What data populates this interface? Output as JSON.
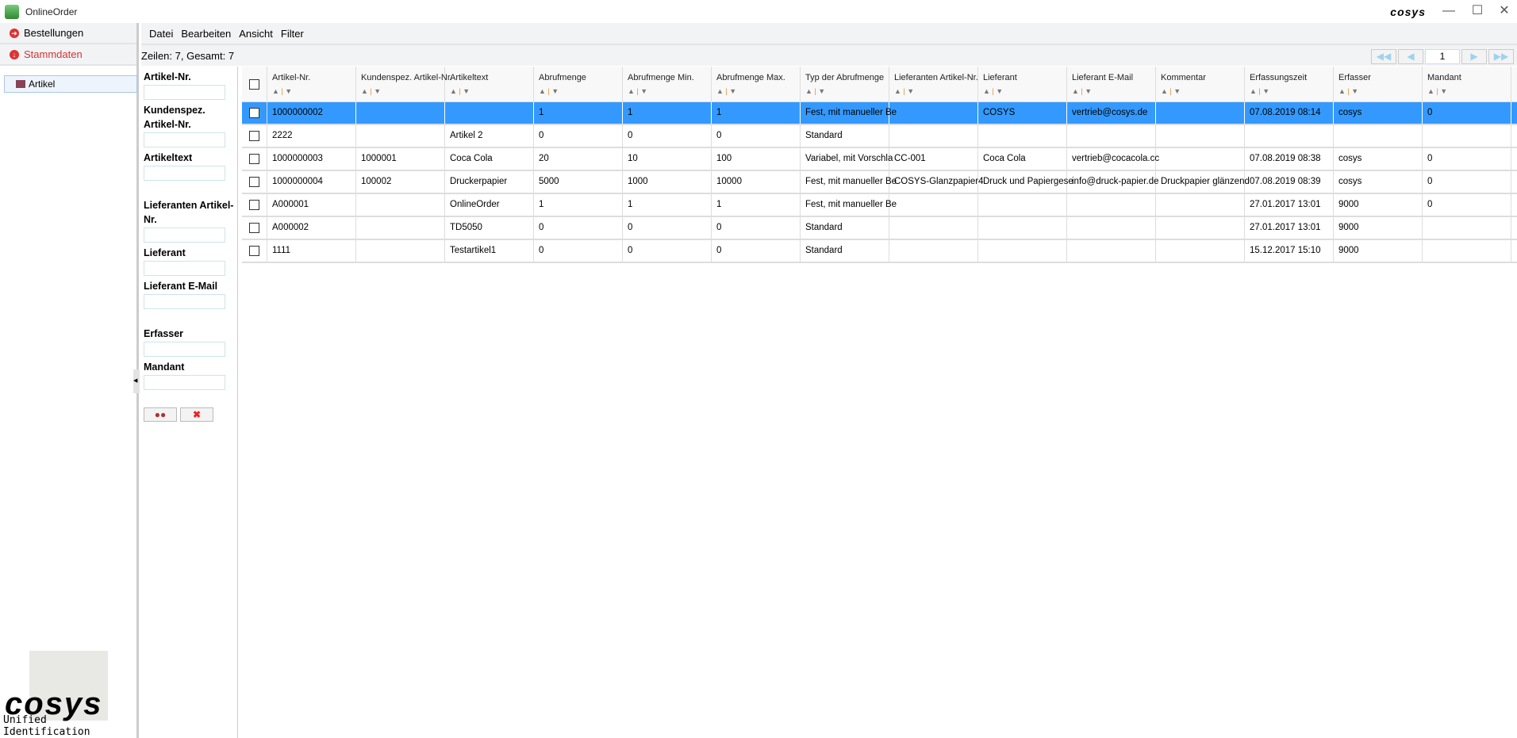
{
  "window": {
    "title": "OnlineOrder",
    "logo": "cosys",
    "controls": [
      "minimize",
      "maximize",
      "close"
    ]
  },
  "sidebar": {
    "items": [
      {
        "label": "Bestellungen",
        "icon": "arrow-right-circle-icon"
      },
      {
        "label": "Stammdaten",
        "icon": "arrow-down-circle-icon",
        "color": "#d33333"
      }
    ],
    "tree": [
      {
        "label": "Artikel"
      }
    ],
    "logo": {
      "word": "COSYS",
      "tagline": "Unified Identification"
    }
  },
  "menu": [
    "Datei",
    "Bearbeiten",
    "Ansicht",
    "Filter"
  ],
  "status": "Zeilen: 7, Gesamt: 7",
  "pager": {
    "page": "1"
  },
  "filter": {
    "fields": [
      "Artikel-Nr.",
      "Kundenspez. Artikel-Nr.",
      "Artikeltext",
      "Lieferanten Artikel-Nr.",
      "Lieferant",
      "Lieferant E-Mail",
      "Erfasser",
      "Mandant"
    ],
    "search_icon": "binoculars-icon",
    "clear_icon": "red-x-icon"
  },
  "table": {
    "columns": [
      "Artikel-Nr.",
      "Kundenspez. Artikel-Nr.",
      "Artikeltext",
      "Abrufmenge",
      "Abrufmenge Min.",
      "Abrufmenge Max.",
      "Typ der Abrufmenge",
      "Lieferanten Artikel-Nr.",
      "Lieferant",
      "Lieferant E-Mail",
      "Kommentar",
      "Erfassungszeit",
      "Erfasser",
      "Mandant"
    ],
    "selected_row": 0,
    "selection_color": "#3399ff",
    "rows": [
      [
        "1000000002",
        "",
        "",
        "1",
        "1",
        "1",
        "Fest, mit manueller Be",
        "",
        "COSYS",
        "vertrieb@cosys.de",
        "",
        "07.08.2019 08:14",
        "cosys",
        "0"
      ],
      [
        "2222",
        "",
        "Artikel 2",
        "0",
        "0",
        "0",
        "Standard",
        "",
        "",
        "",
        "",
        "",
        "",
        ""
      ],
      [
        "1000000003",
        "1000001",
        "Coca Cola",
        "20",
        "10",
        "100",
        "Variabel, mit Vorschla",
        "CC-001",
        "Coca Cola",
        "vertrieb@cocacola.cc",
        "",
        "07.08.2019 08:38",
        "cosys",
        "0"
      ],
      [
        "1000000004",
        "100002",
        "Druckerpapier",
        "5000",
        "1000",
        "10000",
        "Fest, mit manueller Be",
        "COSYS-Glanzpapier4",
        "Druck und Papiergese",
        "info@druck-papier.de",
        "Druckpapier glänzend",
        "07.08.2019 08:39",
        "cosys",
        "0"
      ],
      [
        "A000001",
        "",
        "OnlineOrder",
        "1",
        "1",
        "1",
        "Fest, mit manueller Be",
        "",
        "",
        "",
        "",
        "27.01.2017 13:01",
        "9000",
        "0"
      ],
      [
        "A000002",
        "",
        "TD5050",
        "0",
        "0",
        "0",
        "Standard",
        "",
        "",
        "",
        "",
        "27.01.2017 13:01",
        "9000",
        ""
      ],
      [
        "1111",
        "",
        "Testartikel1",
        "0",
        "0",
        "0",
        "Standard",
        "",
        "",
        "",
        "",
        "15.12.2017 15:10",
        "9000",
        ""
      ]
    ]
  }
}
